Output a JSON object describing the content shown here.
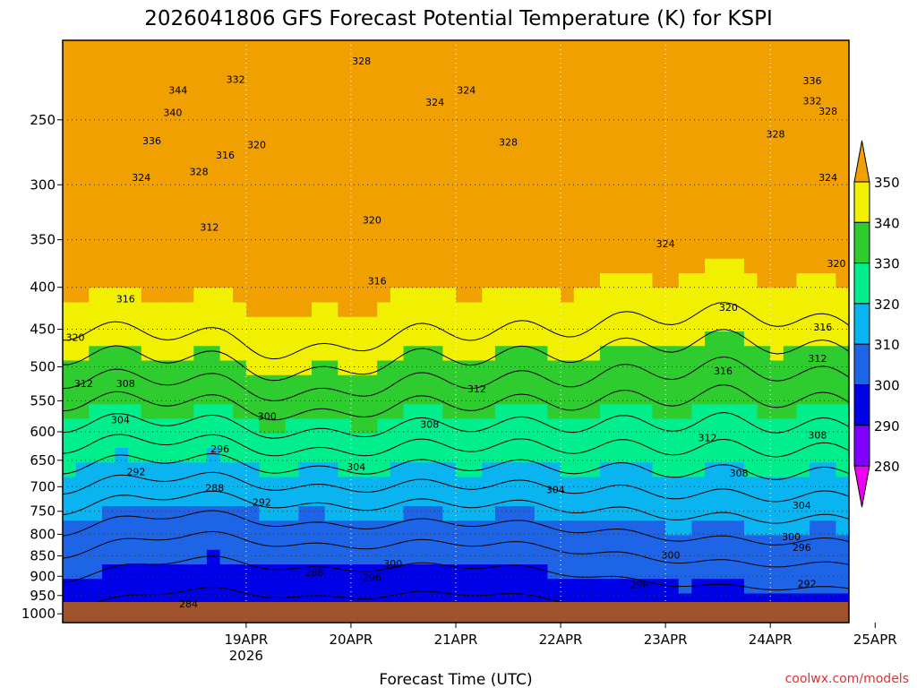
{
  "chart_data": {
    "type": "heatmap",
    "title": "2026041806 GFS Forecast Potential Temperature (K) for KSPI",
    "xlabel": "Forecast Time (UTC)",
    "ylabel": "",
    "x_ticks": [
      {
        "label": "19APR",
        "sub": "2026",
        "day": 1.0
      },
      {
        "label": "20APR",
        "day": 2.0
      },
      {
        "label": "21APR",
        "day": 3.0
      },
      {
        "label": "22APR",
        "day": 4.0
      },
      {
        "label": "23APR",
        "day": 5.0
      },
      {
        "label": "24APR",
        "day": 6.0
      },
      {
        "label": "25APR",
        "day": 7.0
      }
    ],
    "xlim_days": [
      -0.75,
      6.75
    ],
    "y_ticks": [
      250,
      300,
      350,
      400,
      450,
      500,
      550,
      600,
      650,
      700,
      750,
      800,
      850,
      900,
      950,
      1000
    ],
    "ylim_hpa": [
      1025,
      200
    ],
    "colorbar": {
      "ticks": [
        "350",
        "340",
        "330",
        "320",
        "310",
        "300",
        "290",
        "280"
      ],
      "levels": [
        280,
        290,
        300,
        310,
        320,
        330,
        340,
        350
      ],
      "colors": [
        "#f000f0",
        "#8000ff",
        "#0000e6",
        "#1e64e6",
        "#0ab4f0",
        "#00ee8c",
        "#2ecc2e",
        "#f0f000",
        "#f0a000"
      ]
    },
    "contour_labels": [
      {
        "text": "344",
        "day": 0.35,
        "p": 230
      },
      {
        "text": "340",
        "day": 0.3,
        "p": 245
      },
      {
        "text": "336",
        "day": 0.1,
        "p": 265
      },
      {
        "text": "332",
        "day": 0.9,
        "p": 223
      },
      {
        "text": "328",
        "day": 0.55,
        "p": 289
      },
      {
        "text": "328",
        "day": 2.1,
        "p": 212
      },
      {
        "text": "324",
        "day": 0.0,
        "p": 294
      },
      {
        "text": "324",
        "day": 2.8,
        "p": 238
      },
      {
        "text": "320",
        "day": 1.1,
        "p": 268
      },
      {
        "text": "316",
        "day": 0.8,
        "p": 276
      },
      {
        "text": "312",
        "day": 0.65,
        "p": 338
      },
      {
        "text": "316",
        "day": -0.15,
        "p": 413
      },
      {
        "text": "320",
        "day": -0.65,
        "p": 460
      },
      {
        "text": "312",
        "day": -0.55,
        "p": 524
      },
      {
        "text": "308",
        "day": -0.15,
        "p": 524
      },
      {
        "text": "304",
        "day": -0.2,
        "p": 580
      },
      {
        "text": "292",
        "day": -0.05,
        "p": 671
      },
      {
        "text": "288",
        "day": 0.7,
        "p": 702
      },
      {
        "text": "296",
        "day": 0.75,
        "p": 629
      },
      {
        "text": "300",
        "day": 1.2,
        "p": 574
      },
      {
        "text": "292",
        "day": 1.15,
        "p": 731
      },
      {
        "text": "288",
        "day": 1.65,
        "p": 890
      },
      {
        "text": "284",
        "day": 0.45,
        "p": 972
      },
      {
        "text": "320",
        "day": 2.2,
        "p": 331
      },
      {
        "text": "316",
        "day": 2.25,
        "p": 393
      },
      {
        "text": "312",
        "day": 3.2,
        "p": 532
      },
      {
        "text": "308",
        "day": 2.75,
        "p": 587
      },
      {
        "text": "304",
        "day": 2.05,
        "p": 662
      },
      {
        "text": "300",
        "day": 2.4,
        "p": 868
      },
      {
        "text": "296",
        "day": 2.2,
        "p": 903
      },
      {
        "text": "328",
        "day": 3.5,
        "p": 266
      },
      {
        "text": "324",
        "day": 3.1,
        "p": 230
      },
      {
        "text": "324",
        "day": 5.0,
        "p": 354
      },
      {
        "text": "304",
        "day": 3.95,
        "p": 706
      },
      {
        "text": "308",
        "day": 5.7,
        "p": 674
      },
      {
        "text": "296",
        "day": 4.75,
        "p": 921
      },
      {
        "text": "300",
        "day": 5.05,
        "p": 848
      },
      {
        "text": "312",
        "day": 5.4,
        "p": 610
      },
      {
        "text": "316",
        "day": 5.55,
        "p": 506
      },
      {
        "text": "320",
        "day": 5.6,
        "p": 423
      },
      {
        "text": "328",
        "day": 6.05,
        "p": 260
      },
      {
        "text": "332",
        "day": 6.4,
        "p": 237
      },
      {
        "text": "336",
        "day": 6.4,
        "p": 224
      },
      {
        "text": "328",
        "day": 6.55,
        "p": 244
      },
      {
        "text": "324",
        "day": 6.55,
        "p": 294
      },
      {
        "text": "320",
        "day": 6.75,
        "p": 374
      },
      {
        "text": "316",
        "day": 6.5,
        "p": 447
      },
      {
        "text": "312",
        "day": 6.45,
        "p": 488
      },
      {
        "text": "308",
        "day": 6.45,
        "p": 605
      },
      {
        "text": "304",
        "day": 6.3,
        "p": 737
      },
      {
        "text": "300",
        "day": 6.2,
        "p": 805
      },
      {
        "text": "296",
        "day": 6.3,
        "p": 830
      },
      {
        "text": "292",
        "day": 6.35,
        "p": 919
      }
    ]
  },
  "credit": "coolwx.com/models"
}
